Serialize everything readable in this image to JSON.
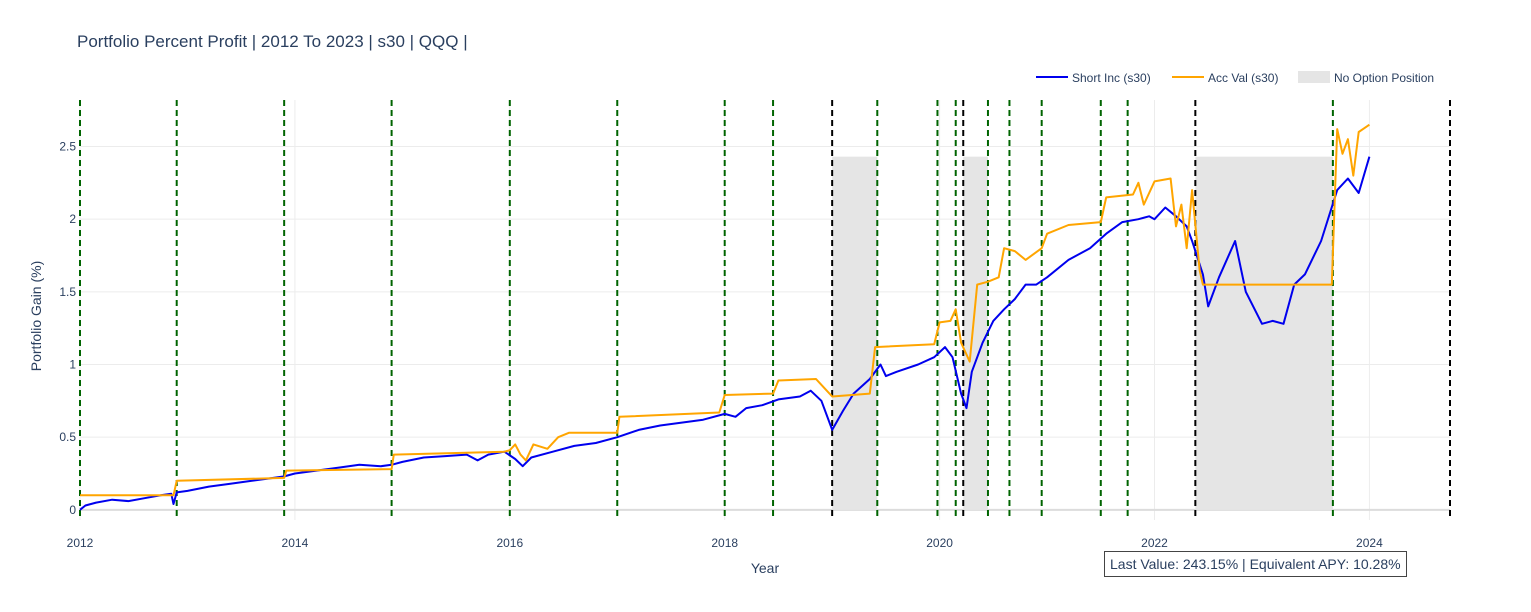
{
  "chart_data": {
    "type": "line",
    "title": "Portfolio Percent Profit | 2012 To 2023 | s30 | QQQ |",
    "xlabel": "Year",
    "ylabel": "Portfolio Gain (%)",
    "xlim": [
      2012.0,
      2024.75
    ],
    "ylim": [
      -0.07,
      2.82
    ],
    "grid": true,
    "legend_position": "top-right",
    "x_ticks": [
      2012,
      2014,
      2016,
      2018,
      2020,
      2022,
      2024
    ],
    "y_ticks": [
      0,
      0.5,
      1,
      1.5,
      2,
      2.5
    ],
    "x_tick_labels": [
      "2012",
      "2014",
      "2016",
      "2018",
      "2020",
      "2022",
      "2024"
    ],
    "y_tick_labels": [
      "0",
      "0.5",
      "1",
      "1.5",
      "2",
      "2.5"
    ],
    "legend": [
      {
        "label": "Short Inc (s30)",
        "kind": "line",
        "color": "#0000ee"
      },
      {
        "label": "Acc Val (s30)",
        "kind": "line",
        "color": "#ffa500"
      },
      {
        "label": "No Option Position",
        "kind": "area",
        "color": "#e5e5e5"
      }
    ],
    "series": [
      {
        "name": "Short Inc (s30)",
        "color": "#0000ee",
        "points": [
          [
            2012.0,
            0.0
          ],
          [
            2012.05,
            0.03
          ],
          [
            2012.15,
            0.05
          ],
          [
            2012.3,
            0.07
          ],
          [
            2012.45,
            0.06
          ],
          [
            2012.6,
            0.08
          ],
          [
            2012.75,
            0.1
          ],
          [
            2012.85,
            0.11
          ],
          [
            2012.87,
            0.04
          ],
          [
            2012.9,
            0.12
          ],
          [
            2013.0,
            0.13
          ],
          [
            2013.2,
            0.16
          ],
          [
            2013.4,
            0.18
          ],
          [
            2013.6,
            0.2
          ],
          [
            2013.8,
            0.22
          ],
          [
            2013.9,
            0.23
          ],
          [
            2014.0,
            0.25
          ],
          [
            2014.2,
            0.27
          ],
          [
            2014.4,
            0.29
          ],
          [
            2014.6,
            0.31
          ],
          [
            2014.8,
            0.3
          ],
          [
            2014.9,
            0.31
          ],
          [
            2015.0,
            0.33
          ],
          [
            2015.2,
            0.36
          ],
          [
            2015.4,
            0.37
          ],
          [
            2015.6,
            0.38
          ],
          [
            2015.7,
            0.34
          ],
          [
            2015.8,
            0.38
          ],
          [
            2015.95,
            0.4
          ],
          [
            2016.05,
            0.35
          ],
          [
            2016.12,
            0.3
          ],
          [
            2016.2,
            0.36
          ],
          [
            2016.4,
            0.4
          ],
          [
            2016.6,
            0.44
          ],
          [
            2016.8,
            0.46
          ],
          [
            2017.0,
            0.5
          ],
          [
            2017.2,
            0.55
          ],
          [
            2017.4,
            0.58
          ],
          [
            2017.6,
            0.6
          ],
          [
            2017.8,
            0.62
          ],
          [
            2018.0,
            0.66
          ],
          [
            2018.1,
            0.64
          ],
          [
            2018.2,
            0.7
          ],
          [
            2018.35,
            0.72
          ],
          [
            2018.5,
            0.76
          ],
          [
            2018.7,
            0.78
          ],
          [
            2018.8,
            0.82
          ],
          [
            2018.9,
            0.75
          ],
          [
            2019.0,
            0.55
          ],
          [
            2019.1,
            0.68
          ],
          [
            2019.2,
            0.8
          ],
          [
            2019.35,
            0.9
          ],
          [
            2019.45,
            1.0
          ],
          [
            2019.5,
            0.92
          ],
          [
            2019.6,
            0.95
          ],
          [
            2019.8,
            1.0
          ],
          [
            2019.95,
            1.05
          ],
          [
            2020.05,
            1.12
          ],
          [
            2020.12,
            1.05
          ],
          [
            2020.2,
            0.8
          ],
          [
            2020.25,
            0.7
          ],
          [
            2020.3,
            0.95
          ],
          [
            2020.4,
            1.15
          ],
          [
            2020.5,
            1.3
          ],
          [
            2020.6,
            1.38
          ],
          [
            2020.7,
            1.45
          ],
          [
            2020.8,
            1.55
          ],
          [
            2020.9,
            1.55
          ],
          [
            2021.0,
            1.6
          ],
          [
            2021.2,
            1.72
          ],
          [
            2021.4,
            1.8
          ],
          [
            2021.55,
            1.9
          ],
          [
            2021.7,
            1.98
          ],
          [
            2021.85,
            2.0
          ],
          [
            2021.95,
            2.02
          ],
          [
            2022.0,
            2.0
          ],
          [
            2022.1,
            2.08
          ],
          [
            2022.2,
            2.02
          ],
          [
            2022.3,
            1.95
          ],
          [
            2022.35,
            1.85
          ],
          [
            2022.45,
            1.62
          ],
          [
            2022.5,
            1.4
          ],
          [
            2022.6,
            1.6
          ],
          [
            2022.75,
            1.85
          ],
          [
            2022.85,
            1.5
          ],
          [
            2023.0,
            1.28
          ],
          [
            2023.1,
            1.3
          ],
          [
            2023.2,
            1.28
          ],
          [
            2023.3,
            1.55
          ],
          [
            2023.4,
            1.62
          ],
          [
            2023.55,
            1.85
          ],
          [
            2023.7,
            2.2
          ],
          [
            2023.8,
            2.28
          ],
          [
            2023.9,
            2.18
          ],
          [
            2024.0,
            2.43
          ]
        ]
      },
      {
        "name": "Acc Val (s30)",
        "color": "#ffa500",
        "points": [
          [
            2012.0,
            0.1
          ],
          [
            2012.87,
            0.1
          ],
          [
            2012.9,
            0.2
          ],
          [
            2013.9,
            0.22
          ],
          [
            2013.92,
            0.27
          ],
          [
            2014.9,
            0.28
          ],
          [
            2014.92,
            0.38
          ],
          [
            2015.95,
            0.4
          ],
          [
            2016.0,
            0.41
          ],
          [
            2016.05,
            0.45
          ],
          [
            2016.1,
            0.38
          ],
          [
            2016.15,
            0.34
          ],
          [
            2016.22,
            0.45
          ],
          [
            2016.35,
            0.42
          ],
          [
            2016.45,
            0.5
          ],
          [
            2016.55,
            0.53
          ],
          [
            2016.9,
            0.53
          ],
          [
            2017.0,
            0.53
          ],
          [
            2017.02,
            0.64
          ],
          [
            2017.95,
            0.67
          ],
          [
            2018.0,
            0.79
          ],
          [
            2018.45,
            0.8
          ],
          [
            2018.5,
            0.89
          ],
          [
            2018.85,
            0.9
          ],
          [
            2018.95,
            0.82
          ],
          [
            2019.0,
            0.78
          ],
          [
            2019.35,
            0.8
          ],
          [
            2019.4,
            1.12
          ],
          [
            2019.95,
            1.14
          ],
          [
            2020.0,
            1.29
          ],
          [
            2020.1,
            1.3
          ],
          [
            2020.15,
            1.38
          ],
          [
            2020.2,
            1.15
          ],
          [
            2020.28,
            1.02
          ],
          [
            2020.35,
            1.55
          ],
          [
            2020.45,
            1.57
          ],
          [
            2020.55,
            1.6
          ],
          [
            2020.6,
            1.8
          ],
          [
            2020.7,
            1.78
          ],
          [
            2020.8,
            1.72
          ],
          [
            2020.95,
            1.8
          ],
          [
            2021.0,
            1.9
          ],
          [
            2021.2,
            1.96
          ],
          [
            2021.5,
            1.98
          ],
          [
            2021.55,
            2.15
          ],
          [
            2021.8,
            2.17
          ],
          [
            2021.85,
            2.25
          ],
          [
            2021.9,
            2.1
          ],
          [
            2022.0,
            2.26
          ],
          [
            2022.15,
            2.28
          ],
          [
            2022.2,
            1.95
          ],
          [
            2022.25,
            2.1
          ],
          [
            2022.3,
            1.8
          ],
          [
            2022.35,
            2.2
          ],
          [
            2022.42,
            1.65
          ],
          [
            2022.45,
            1.55
          ],
          [
            2023.65,
            1.55
          ],
          [
            2023.7,
            2.62
          ],
          [
            2023.75,
            2.45
          ],
          [
            2023.8,
            2.55
          ],
          [
            2023.85,
            2.3
          ],
          [
            2023.9,
            2.6
          ],
          [
            2024.0,
            2.65
          ]
        ]
      }
    ],
    "no_option_position_periods": [
      [
        2019.0,
        2019.42
      ],
      [
        2020.22,
        2020.45
      ],
      [
        2022.38,
        2023.66
      ]
    ],
    "no_option_position_top": 2.43,
    "green_dashed_markers": [
      2012.0,
      2012.9,
      2013.9,
      2014.9,
      2016.0,
      2017.0,
      2018.0,
      2018.45,
      2019.42,
      2019.98,
      2020.15,
      2020.45,
      2020.65,
      2020.95,
      2021.5,
      2021.75,
      2023.66
    ],
    "black_dashed_markers": [
      2019.0,
      2020.22,
      2022.38,
      2024.75
    ]
  },
  "stat_box_text": "Last Value: 243.15% | Equivalent APY: 10.28%"
}
